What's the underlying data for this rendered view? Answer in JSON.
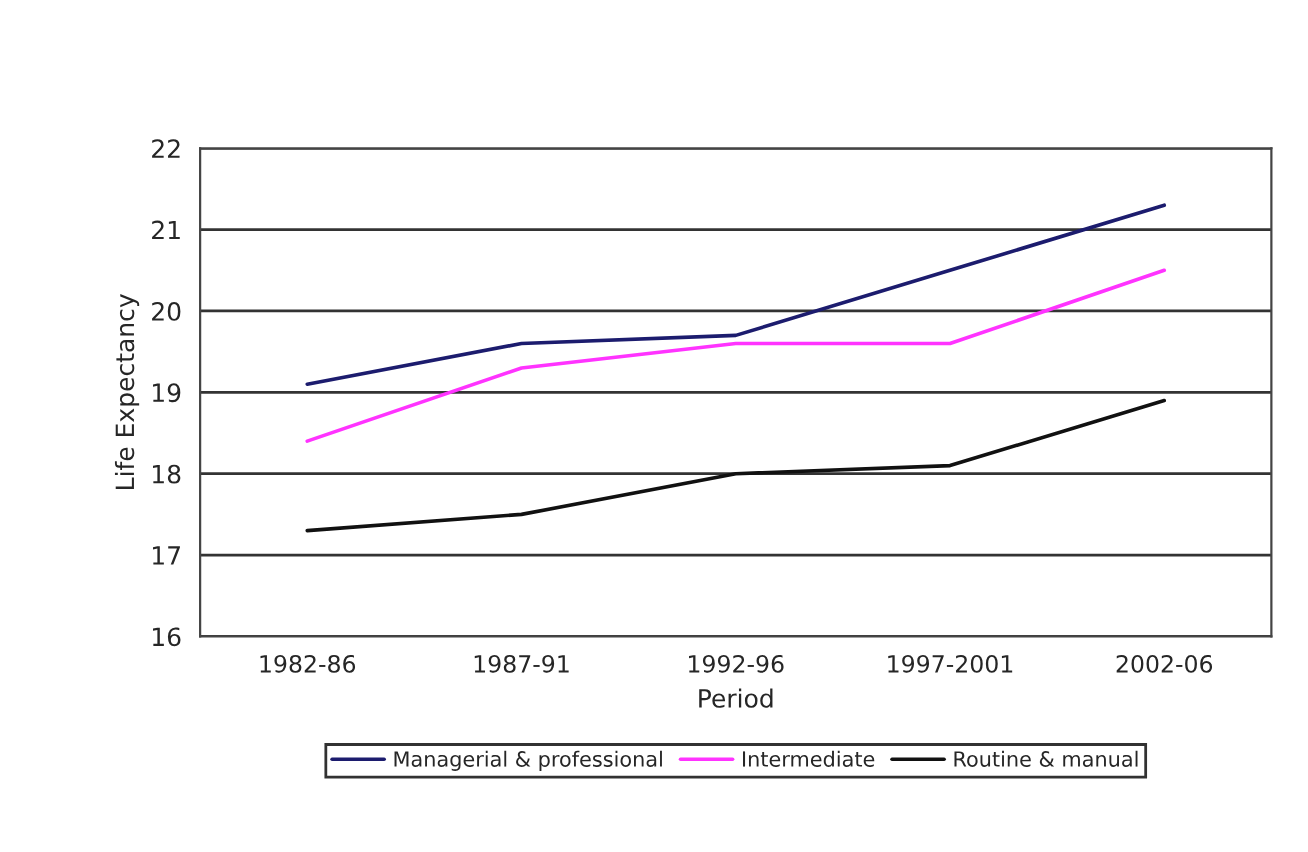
{
  "chart_data": {
    "type": "line",
    "xlabel": "Period",
    "ylabel": "Life Expectancy",
    "categories": [
      "1982-86",
      "1987-91",
      "1992-96",
      "1997-2001",
      "2002-06"
    ],
    "series": [
      {
        "name": "Managerial & professional",
        "color": "#1c1c6e",
        "values": [
          19.1,
          19.6,
          19.7,
          20.5,
          21.3
        ]
      },
      {
        "name": "Intermediate",
        "color": "#ff33ff",
        "values": [
          18.4,
          19.3,
          19.6,
          19.6,
          20.5
        ]
      },
      {
        "name": "Routine & manual",
        "color": "#111111",
        "values": [
          17.3,
          17.5,
          18.0,
          18.1,
          18.9
        ]
      }
    ],
    "ylim": [
      16,
      22
    ],
    "yticks": [
      16,
      17,
      18,
      19,
      20,
      21,
      22
    ],
    "grid": "y",
    "legend": "bottom",
    "marker": "none",
    "line_style": "solid"
  }
}
